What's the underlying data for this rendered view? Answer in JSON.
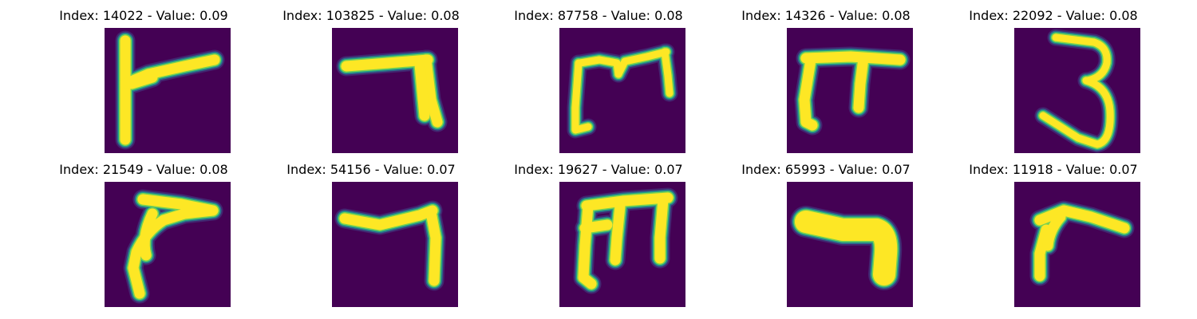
{
  "colors": {
    "background": "#440154",
    "stroke_core": "#fde725",
    "stroke_mid": "#7ad151",
    "stroke_edge": "#22a884",
    "stroke_outer": "#2a788e",
    "halo": "#414487"
  },
  "panels": [
    {
      "title": "Index: 14022 - Value: 0.09",
      "glyph": "r-shape"
    },
    {
      "title": "Index: 103825 - Value: 0.08",
      "glyph": "seven-shape"
    },
    {
      "title": "Index: 87758 - Value: 0.08",
      "glyph": "m-shape"
    },
    {
      "title": "Index: 14326 - Value: 0.08",
      "glyph": "pi-shape"
    },
    {
      "title": "Index: 22092 - Value: 0.08",
      "glyph": "three-shape"
    },
    {
      "title": "Index: 21549 - Value: 0.08",
      "glyph": "curl-shape"
    },
    {
      "title": "Index: 54156 - Value: 0.07",
      "glyph": "seven-shape-2"
    },
    {
      "title": "Index: 19627 - Value: 0.07",
      "glyph": "m-shape-2"
    },
    {
      "title": "Index: 65993 - Value: 0.07",
      "glyph": "blob-shape"
    },
    {
      "title": "Index: 11918 - Value: 0.07",
      "glyph": "r-shape-2"
    }
  ]
}
